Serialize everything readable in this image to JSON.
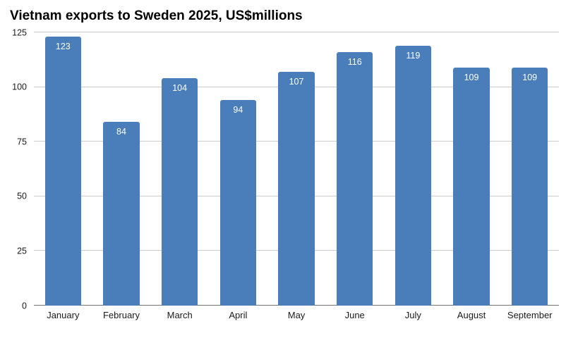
{
  "chart_data": {
    "type": "bar",
    "title": "Vietnam exports to Sweden 2025, US$millions",
    "categories": [
      "January",
      "February",
      "March",
      "April",
      "May",
      "June",
      "July",
      "August",
      "September"
    ],
    "values": [
      123,
      84,
      104,
      94,
      107,
      116,
      119,
      109,
      109
    ],
    "xlabel": "",
    "ylabel": "",
    "ylim": [
      0,
      125
    ],
    "yticks": [
      0,
      25,
      50,
      75,
      100,
      125
    ],
    "grid": "horizontal",
    "legend": "none",
    "bar_color": "#4a7ebb",
    "value_label_style": "inside-top-white"
  }
}
